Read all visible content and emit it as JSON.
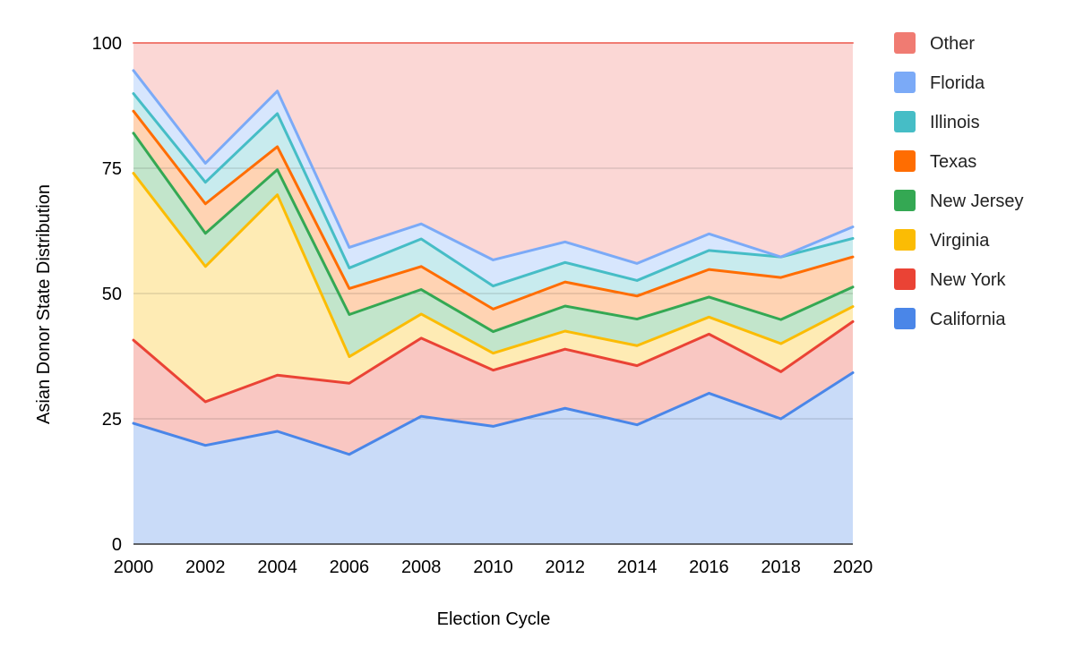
{
  "chart_data": {
    "type": "area",
    "stacked": true,
    "title": "",
    "xlabel": "Election Cycle",
    "ylabel": "Asian Donor State Distribution",
    "x": [
      "2000",
      "2002",
      "2004",
      "2006",
      "2008",
      "2010",
      "2012",
      "2014",
      "2016",
      "2018",
      "2020"
    ],
    "ylim": [
      0,
      100
    ],
    "yticks": [
      "0",
      "25",
      "50",
      "75",
      "100"
    ],
    "grid": true,
    "legend_position": "right",
    "series": [
      {
        "name": "California",
        "color": "#4a86e8",
        "values": [
          24.1,
          19.7,
          22.5,
          17.9,
          25.5,
          23.5,
          27.1,
          23.8,
          30.1,
          25.0,
          34.2
        ]
      },
      {
        "name": "New York",
        "color": "#ea4335",
        "values": [
          16.6,
          8.7,
          11.2,
          14.2,
          15.6,
          11.2,
          11.8,
          11.8,
          11.8,
          9.4,
          10.2
        ]
      },
      {
        "name": "Virginia",
        "color": "#fbbc04",
        "values": [
          33.3,
          27.0,
          36.0,
          5.3,
          4.8,
          3.4,
          3.6,
          4.0,
          3.4,
          5.6,
          3.0
        ]
      },
      {
        "name": "New Jersey",
        "color": "#34a853",
        "values": [
          8.0,
          6.6,
          5.0,
          8.4,
          4.9,
          4.3,
          5.0,
          5.3,
          4.0,
          4.8,
          3.9
        ]
      },
      {
        "name": "Texas",
        "color": "#ff6d01",
        "values": [
          4.4,
          5.9,
          4.6,
          5.2,
          4.6,
          4.5,
          4.8,
          4.6,
          5.5,
          8.4,
          6.0
        ]
      },
      {
        "name": "Illinois",
        "color": "#46bdc6",
        "values": [
          3.5,
          4.3,
          6.6,
          4.1,
          5.5,
          4.6,
          3.9,
          3.1,
          3.8,
          4.1,
          3.7
        ]
      },
      {
        "name": "Florida",
        "color": "#7baaf7",
        "values": [
          4.6,
          3.8,
          4.5,
          4.1,
          3.0,
          5.2,
          4.1,
          3.4,
          3.3,
          0.0,
          2.3
        ]
      },
      {
        "name": "Other",
        "color": "#f07b72",
        "values": [
          5.5,
          24.0,
          9.6,
          40.8,
          36.1,
          43.3,
          39.7,
          44.0,
          38.1,
          42.7,
          36.7
        ]
      }
    ]
  }
}
